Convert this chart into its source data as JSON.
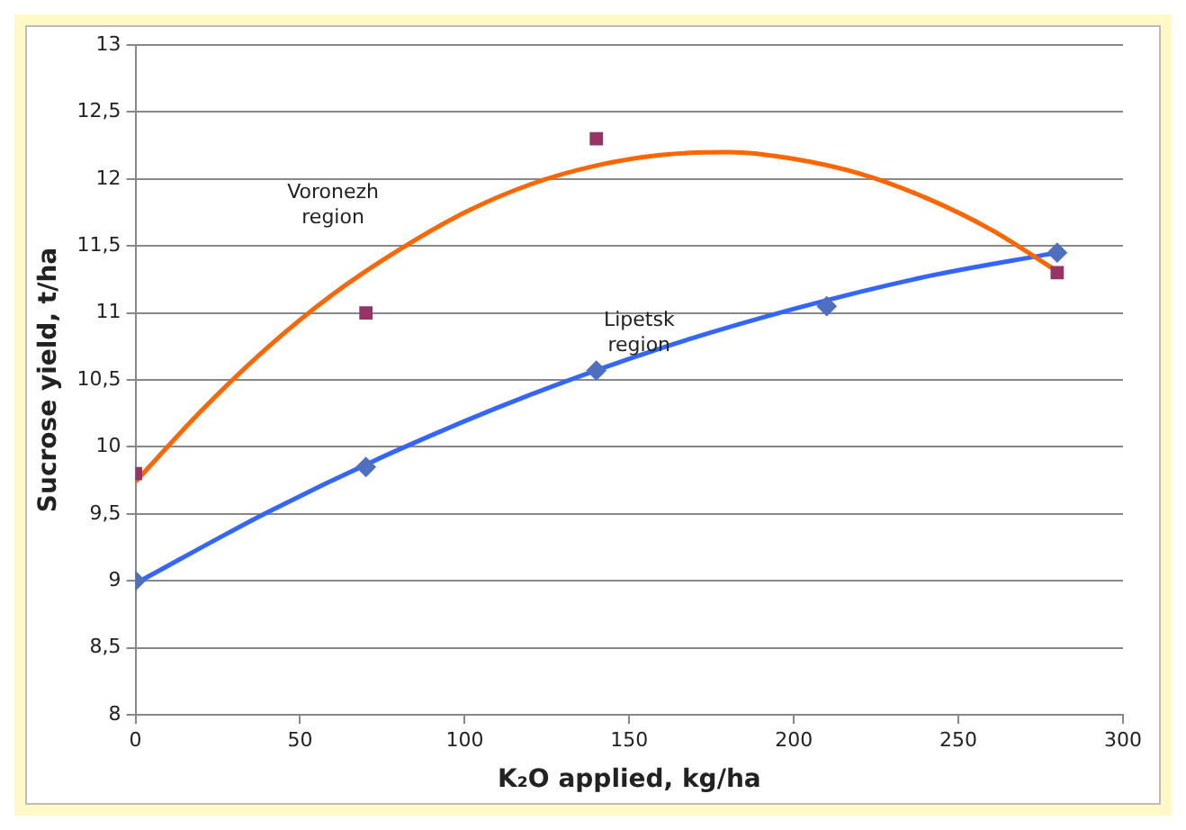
{
  "chart_data": {
    "type": "scatter",
    "xlabel": "K₂O applied, kg/ha",
    "ylabel": "Sucrose yield, t/ha",
    "xlim": [
      0,
      300
    ],
    "xticks": [
      0,
      50,
      100,
      150,
      200,
      250,
      300
    ],
    "ylim": [
      8,
      13
    ],
    "yticks": [
      8,
      {
        "value": 8.5,
        "label": "8,5"
      },
      9,
      {
        "value": 9.5,
        "label": "9,5"
      },
      10,
      {
        "value": 10.5,
        "label": "10,5"
      },
      11,
      {
        "value": 11.5,
        "label": "11,5"
      },
      12,
      {
        "value": 12.5,
        "label": "12,5"
      },
      13
    ],
    "grid": "y",
    "legend": false,
    "series": [
      {
        "type": "scatter",
        "marker": "square",
        "color": "#993366",
        "x": [
          0,
          70,
          140,
          280
        ],
        "values": [
          9.8,
          11.0,
          12.3,
          11.3
        ]
      },
      {
        "type": "scatter",
        "marker": "diamond",
        "color": "#4f6fbf",
        "x": [
          0,
          70,
          140,
          210,
          280
        ],
        "values": [
          9.0,
          9.85,
          10.57,
          11.05,
          11.45
        ]
      },
      {
        "type": "line",
        "marker": "none",
        "color": "#ff6600",
        "x": [
          0,
          20,
          40,
          60,
          80,
          100,
          120,
          140,
          160,
          180,
          200,
          220,
          240,
          260,
          280
        ],
        "values": [
          9.74,
          10.27,
          10.74,
          11.14,
          11.47,
          11.75,
          11.96,
          12.1,
          12.18,
          12.2,
          12.15,
          12.04,
          11.86,
          11.62,
          11.31
        ]
      },
      {
        "type": "line",
        "marker": "none",
        "color": "#3366ff",
        "x": [
          0,
          40,
          80,
          120,
          160,
          200,
          240,
          280
        ],
        "values": [
          8.98,
          9.51,
          9.98,
          10.39,
          10.74,
          11.03,
          11.27,
          11.45
        ]
      }
    ],
    "annotations": [
      "Voronezh region",
      "Lipetsk region"
    ]
  }
}
